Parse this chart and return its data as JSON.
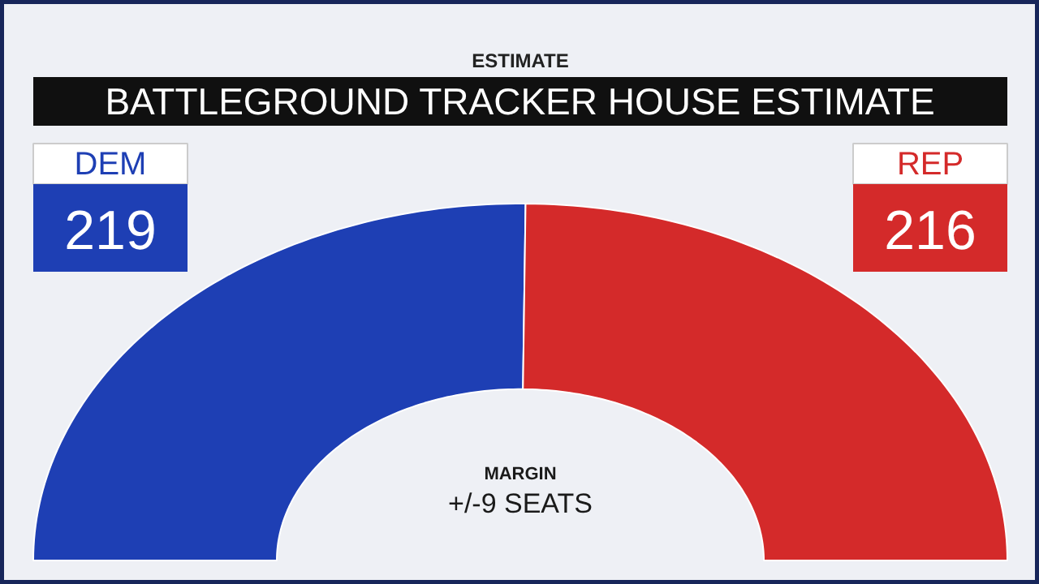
{
  "chart_data": {
    "type": "donut",
    "title": "BATTLEGROUND TRACKER HOUSE ESTIMATE",
    "subtitle": "ESTIMATE",
    "categories": [
      "DEM",
      "REP"
    ],
    "values": [
      219,
      216
    ],
    "colors": [
      "#1e3fb4",
      "#d42a2a"
    ],
    "data_labels": true,
    "annotations": [
      "MARGIN",
      "+/-9 SEATS"
    ]
  }
}
